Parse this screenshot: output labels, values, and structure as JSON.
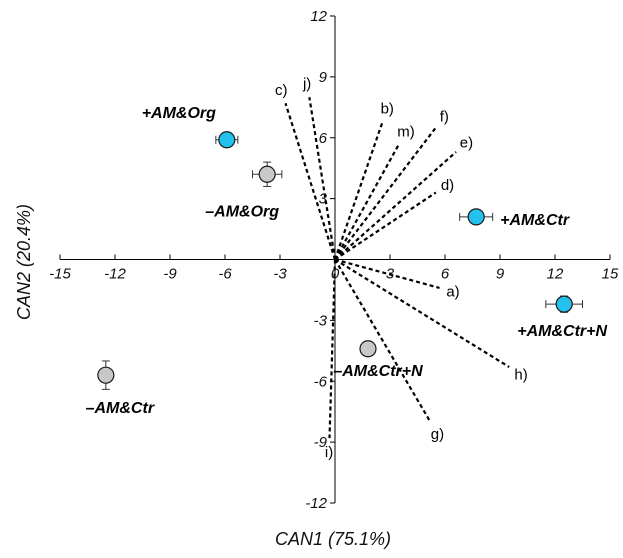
{
  "chart_data": {
    "type": "scatter",
    "xlabel": "CAN1 (75.1%)",
    "ylabel": "CAN2 (20.4%)",
    "xlim": [
      -15,
      15
    ],
    "ylim": [
      -12,
      12
    ],
    "x_ticks": [
      -15,
      -12,
      -9,
      -6,
      -3,
      0,
      3,
      6,
      9,
      12,
      15
    ],
    "y_ticks": [
      -12,
      -9,
      -6,
      -3,
      0,
      3,
      6,
      9,
      12
    ],
    "grid": false,
    "colors": {
      "am_plus": "#22c1ee",
      "am_minus": "#c8c8c8",
      "stroke": "#1a1a1a",
      "vector": "#000000"
    },
    "points": [
      {
        "label": "+AM&Org",
        "x": -5.9,
        "y": 5.9,
        "x_err": 0.6,
        "y_err": 0.2,
        "group": "am_plus"
      },
      {
        "label": "–AM&Org",
        "x": -3.7,
        "y": 4.2,
        "x_err": 0.8,
        "y_err": 0.6,
        "group": "am_minus"
      },
      {
        "label": "+AM&Ctr",
        "x": 7.7,
        "y": 2.1,
        "x_err": 0.9,
        "y_err": 0.2,
        "group": "am_plus"
      },
      {
        "label": "+AM&Ctr+N",
        "x": 12.5,
        "y": -2.2,
        "x_err": 1.0,
        "y_err": 0.4,
        "group": "am_plus"
      },
      {
        "label": "–AM&Ctr+N",
        "x": 1.8,
        "y": -4.4,
        "x_err": 0.4,
        "y_err": 0.2,
        "group": "am_minus"
      },
      {
        "label": "–AM&Ctr",
        "x": -12.5,
        "y": -5.7,
        "x_err": 0.3,
        "y_err": 0.7,
        "group": "am_minus"
      }
    ],
    "vectors": [
      {
        "label": "a)",
        "x": 5.7,
        "y": -1.4
      },
      {
        "label": "b)",
        "x": 2.6,
        "y": 6.8
      },
      {
        "label": "c)",
        "x": -2.7,
        "y": 7.7
      },
      {
        "label": "d)",
        "x": 5.5,
        "y": 3.3
      },
      {
        "label": "e)",
        "x": 6.6,
        "y": 5.3
      },
      {
        "label": "f)",
        "x": 5.5,
        "y": 6.5
      },
      {
        "label": "g)",
        "x": 5.2,
        "y": -8.0
      },
      {
        "label": "h)",
        "x": 9.5,
        "y": -5.3
      },
      {
        "label": "i)",
        "x": -0.3,
        "y": -8.8
      },
      {
        "label": "j)",
        "x": -1.4,
        "y": 8.0
      },
      {
        "label": "m)",
        "x": 3.5,
        "y": 5.7
      }
    ]
  }
}
